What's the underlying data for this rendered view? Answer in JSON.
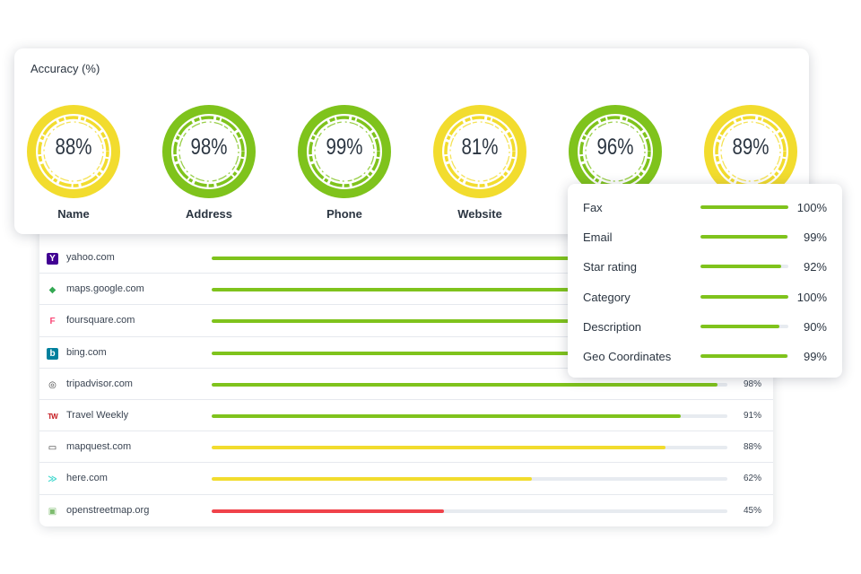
{
  "accuracy": {
    "title": "Accuracy (%)",
    "gauges": [
      {
        "label": "Name",
        "value": "88%",
        "level": 88,
        "color": "#f2dc2e"
      },
      {
        "label": "Address",
        "value": "98%",
        "level": 98,
        "color": "#7fc31c"
      },
      {
        "label": "Phone",
        "value": "99%",
        "level": 99,
        "color": "#7fc31c"
      },
      {
        "label": "Website",
        "value": "81%",
        "level": 81,
        "color": "#f2dc2e"
      },
      {
        "label": "",
        "value": "96%",
        "level": 96,
        "color": "#7fc31c"
      },
      {
        "label": "",
        "value": "89%",
        "level": 89,
        "color": "#f2dc2e"
      }
    ]
  },
  "fields": [
    {
      "name": "Fax",
      "value": "100%",
      "level": 100
    },
    {
      "name": "Email",
      "value": "99%",
      "level": 99
    },
    {
      "name": "Star rating",
      "value": "92%",
      "level": 92
    },
    {
      "name": "Category",
      "value": "100%",
      "level": 100
    },
    {
      "name": "Description",
      "value": "90%",
      "level": 90
    },
    {
      "name": "Geo Coordinates",
      "value": "99%",
      "level": 99
    }
  ],
  "sources": [
    {
      "name": "yahoo.com",
      "value": "",
      "level": 100,
      "color": "#7fc31c",
      "icon": "yahoo-icon",
      "glyph": "Y",
      "icon_color": "#410093"
    },
    {
      "name": "maps.google.com",
      "value": "",
      "level": 100,
      "color": "#7fc31c",
      "icon": "google-maps-icon",
      "glyph": "◆",
      "icon_color": "#34a853"
    },
    {
      "name": "foursquare.com",
      "value": "",
      "level": 100,
      "color": "#7fc31c",
      "icon": "foursquare-icon",
      "glyph": "F",
      "icon_color": "#f94877"
    },
    {
      "name": "bing.com",
      "value": "",
      "level": 100,
      "color": "#7fc31c",
      "icon": "bing-icon",
      "glyph": "b",
      "icon_color": "#00809d"
    },
    {
      "name": "tripadvisor.com",
      "value": "98%",
      "level": 98,
      "color": "#7fc31c",
      "icon": "tripadvisor-icon",
      "glyph": "◎",
      "icon_color": "#3c3c3c"
    },
    {
      "name": "Travel Weekly",
      "value": "91%",
      "level": 91,
      "color": "#7fc31c",
      "icon": "travel-weekly-icon",
      "glyph": "TW",
      "icon_color": "#c4161c"
    },
    {
      "name": "mapquest.com",
      "value": "88%",
      "level": 88,
      "color": "#f2dc2e",
      "icon": "mapquest-icon",
      "glyph": "▭",
      "icon_color": "#333333"
    },
    {
      "name": "here.com",
      "value": "62%",
      "level": 62,
      "color": "#f2dc2e",
      "icon": "here-icon",
      "glyph": "≫",
      "icon_color": "#48dad0"
    },
    {
      "name": "openstreetmap.org",
      "value": "45%",
      "level": 45,
      "color": "#f0424a",
      "icon": "openstreetmap-icon",
      "glyph": "▣",
      "icon_color": "#7ebc6f"
    }
  ]
}
